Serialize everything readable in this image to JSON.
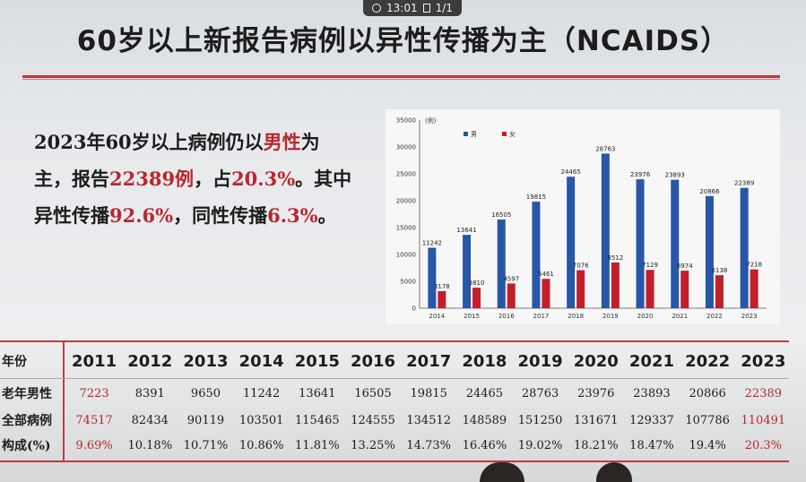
{
  "status": {
    "time": "13:01",
    "page": "1/1"
  },
  "title": "60岁以上新报告病例以异性传播为主（NCAIDS）",
  "desc": {
    "p1": "2023年60岁以上病例仍以",
    "p2": "男性",
    "p3": "为主，报告",
    "p4": "22389例",
    "p5": "，占",
    "p6": "20.3%",
    "p7": "。其中异性传播",
    "p8": "92.6%",
    "p9": "，同性传播",
    "p10": "6.3%",
    "p11": "。"
  },
  "chart_data": {
    "type": "bar",
    "ylabel": "(例)",
    "ylim": [
      0,
      35000
    ],
    "yticks": [
      0,
      5000,
      10000,
      15000,
      20000,
      25000,
      30000,
      35000
    ],
    "categories": [
      "2014",
      "2015",
      "2016",
      "2017",
      "2018",
      "2019",
      "2020",
      "2021",
      "2022",
      "2023"
    ],
    "series": [
      {
        "name": "男",
        "color": "#2757a6",
        "values": [
          11242,
          13641,
          16505,
          19815,
          24465,
          28763,
          23976,
          23893,
          20866,
          22389
        ]
      },
      {
        "name": "女",
        "color": "#c21f2b",
        "values": [
          3178,
          3810,
          4597,
          5461,
          7076,
          8512,
          7129,
          6974,
          6138,
          7218
        ]
      }
    ],
    "data_labels": {
      "male": [
        "11242",
        "13641",
        "16505",
        "19815",
        "24465",
        "28763",
        "23976",
        "23893",
        "20866",
        "22389"
      ],
      "female": [
        "3178",
        "3810",
        "4597",
        "5461",
        "7076",
        "8512",
        "7129",
        "6974",
        "6138",
        "7218"
      ]
    },
    "legend_placement": "top-left"
  },
  "table": {
    "header_label": "年份",
    "years": [
      "2011",
      "2012",
      "2013",
      "2014",
      "2015",
      "2016",
      "2017",
      "2018",
      "2019",
      "2020",
      "2021",
      "2022",
      "2023"
    ],
    "rows": [
      {
        "label": "老年男性",
        "values": [
          "7223",
          "8391",
          "9650",
          "11242",
          "13641",
          "16505",
          "19815",
          "24465",
          "28763",
          "23976",
          "23893",
          "20866",
          "22389"
        ]
      },
      {
        "label": "全部病例",
        "values": [
          "74517",
          "82434",
          "90119",
          "103501",
          "115465",
          "124555",
          "134512",
          "148589",
          "151250",
          "131671",
          "129337",
          "107786",
          "110491"
        ]
      },
      {
        "label": "构成(%)",
        "values": [
          "9.69%",
          "10.18%",
          "10.71%",
          "10.86%",
          "11.81%",
          "13.25%",
          "14.73%",
          "16.46%",
          "19.02%",
          "18.21%",
          "18.47%",
          "19.4%",
          "20.3%"
        ]
      }
    ],
    "highlight_color": "#b8272d"
  }
}
